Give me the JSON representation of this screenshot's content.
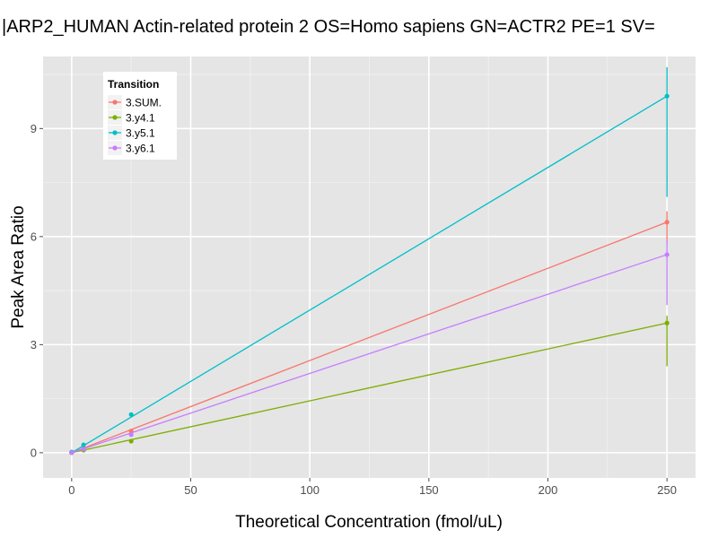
{
  "chart_data": {
    "type": "line",
    "title": "|ARP2_HUMAN Actin-related protein 2 OS=Homo sapiens GN=ACTR2 PE=1 SV=",
    "xlabel": "Theoretical Concentration (fmol/uL)",
    "ylabel": "Peak Area Ratio",
    "xlim": [
      -12,
      262
    ],
    "ylim": [
      -0.7,
      11.0
    ],
    "xticks": [
      0,
      50,
      100,
      150,
      200,
      250
    ],
    "yticks": [
      0,
      3,
      6,
      9
    ],
    "grid": true,
    "legend": {
      "title": "Transition",
      "position": "top-left"
    },
    "series": [
      {
        "name": "3.SUM.",
        "color": "#F8766D",
        "points": [
          {
            "x": 0,
            "y": 0.0
          },
          {
            "x": 5,
            "y": 0.12
          },
          {
            "x": 25,
            "y": 0.6
          }
        ],
        "error_points": [
          {
            "x": 250,
            "y": 6.4,
            "ylo": 5.8,
            "yhi": 6.7
          }
        ],
        "fit": [
          [
            0,
            0.0
          ],
          [
            250,
            6.4
          ]
        ]
      },
      {
        "name": "3.y4.1",
        "color": "#7CAE00",
        "points": [
          {
            "x": 0,
            "y": 0.0
          },
          {
            "x": 5,
            "y": 0.07
          },
          {
            "x": 25,
            "y": 0.32
          }
        ],
        "error_points": [
          {
            "x": 250,
            "y": 3.6,
            "ylo": 2.4,
            "yhi": 3.8
          }
        ],
        "fit": [
          [
            0,
            0.0
          ],
          [
            250,
            3.6
          ]
        ]
      },
      {
        "name": "3.y5.1",
        "color": "#00BFC4",
        "points": [
          {
            "x": 0,
            "y": 0.02
          },
          {
            "x": 5,
            "y": 0.22
          },
          {
            "x": 25,
            "y": 1.06
          }
        ],
        "error_points": [
          {
            "x": 250,
            "y": 9.9,
            "ylo": 7.1,
            "yhi": 10.7
          }
        ],
        "fit": [
          [
            0,
            0.0
          ],
          [
            250,
            9.9
          ]
        ]
      },
      {
        "name": "3.y6.1",
        "color": "#C77CFF",
        "points": [
          {
            "x": 0,
            "y": 0.0
          },
          {
            "x": 5,
            "y": 0.1
          },
          {
            "x": 25,
            "y": 0.5
          }
        ],
        "error_points": [
          {
            "x": 250,
            "y": 5.5,
            "ylo": 4.1,
            "yhi": 5.9
          }
        ],
        "fit": [
          [
            0,
            0.0
          ],
          [
            250,
            5.5
          ]
        ]
      }
    ]
  }
}
